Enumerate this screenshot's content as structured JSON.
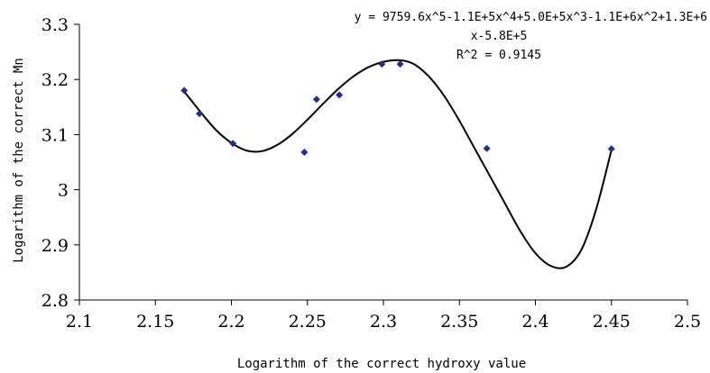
{
  "chart_data": {
    "type": "scatter",
    "xlabel": "Logarithm of the correct hydroxy value",
    "ylabel": "Logarithm of the correct Mn",
    "xlim": [
      2.1,
      2.5
    ],
    "ylim": [
      2.8,
      3.3
    ],
    "xticks": [
      "2.1",
      "2.15",
      "2.2",
      "2.25",
      "2.3",
      "2.35",
      "2.4",
      "2.45",
      "2.5"
    ],
    "yticks": [
      "2.8",
      "2.9",
      "3",
      "3.1",
      "3.2",
      "3.3"
    ],
    "grid": false,
    "marker_color": "#1f2f8f",
    "points": [
      {
        "x": 2.169,
        "y": 3.18
      },
      {
        "x": 2.179,
        "y": 3.138
      },
      {
        "x": 2.201,
        "y": 3.084
      },
      {
        "x": 2.248,
        "y": 3.068
      },
      {
        "x": 2.256,
        "y": 3.164
      },
      {
        "x": 2.271,
        "y": 3.172
      },
      {
        "x": 2.299,
        "y": 3.228
      },
      {
        "x": 2.311,
        "y": 3.228
      },
      {
        "x": 2.368,
        "y": 3.075
      },
      {
        "x": 2.45,
        "y": 3.074
      }
    ],
    "trendline": {
      "type": "polynomial",
      "order": 5,
      "equation_line1": "y = 9759.6x^5-1.1E+5x^4+5.0E+5x^3-1.1E+6x^2+1.3E+6",
      "equation_line2": "x-5.8E+5",
      "r_squared": "R^2 = 0.9145",
      "curve": [
        {
          "x": 2.169,
          "y": 3.178
        },
        {
          "x": 2.18,
          "y": 3.14
        },
        {
          "x": 2.19,
          "y": 3.108
        },
        {
          "x": 2.2,
          "y": 3.085
        },
        {
          "x": 2.21,
          "y": 3.071
        },
        {
          "x": 2.22,
          "y": 3.07
        },
        {
          "x": 2.23,
          "y": 3.081
        },
        {
          "x": 2.24,
          "y": 3.101
        },
        {
          "x": 2.25,
          "y": 3.127
        },
        {
          "x": 2.26,
          "y": 3.155
        },
        {
          "x": 2.27,
          "y": 3.182
        },
        {
          "x": 2.28,
          "y": 3.205
        },
        {
          "x": 2.29,
          "y": 3.222
        },
        {
          "x": 2.3,
          "y": 3.232
        },
        {
          "x": 2.31,
          "y": 3.235
        },
        {
          "x": 2.32,
          "y": 3.228
        },
        {
          "x": 2.33,
          "y": 3.205
        },
        {
          "x": 2.34,
          "y": 3.17
        },
        {
          "x": 2.35,
          "y": 3.125
        },
        {
          "x": 2.36,
          "y": 3.075
        },
        {
          "x": 2.37,
          "y": 3.025
        },
        {
          "x": 2.38,
          "y": 2.975
        },
        {
          "x": 2.39,
          "y": 2.925
        },
        {
          "x": 2.4,
          "y": 2.885
        },
        {
          "x": 2.41,
          "y": 2.862
        },
        {
          "x": 2.42,
          "y": 2.86
        },
        {
          "x": 2.43,
          "y": 2.89
        },
        {
          "x": 2.44,
          "y": 2.965
        },
        {
          "x": 2.45,
          "y": 3.072
        }
      ]
    }
  }
}
